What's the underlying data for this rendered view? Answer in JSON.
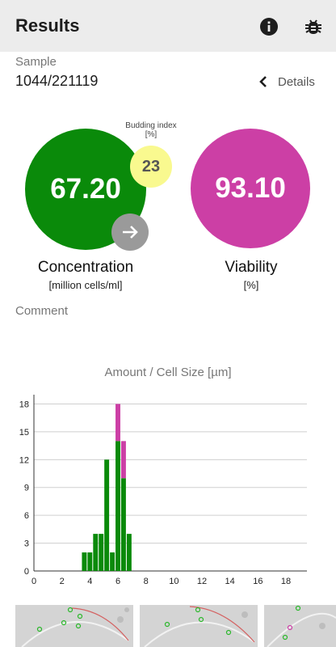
{
  "appbar": {
    "title": "Results",
    "info_icon": "info-icon",
    "bug_icon": "bug-icon"
  },
  "sample": {
    "label": "Sample",
    "value": "1044/221119",
    "details_label": "Details"
  },
  "concentration": {
    "value": "67.20",
    "label": "Concentration",
    "unit": "[million cells/ml]",
    "color": "#0a8a0a"
  },
  "budding": {
    "label_line1": "Budding index",
    "label_line2": "[%]",
    "value": "23",
    "color": "#f9f98f"
  },
  "viability": {
    "value": "93.10",
    "label": "Viability",
    "unit": "[%]",
    "color": "#cc3fa5"
  },
  "comment": {
    "label": "Comment"
  },
  "chart_data": {
    "type": "bar",
    "title": "Amount / Cell Size [µm]",
    "xlabel": "",
    "ylabel": "",
    "xlim": [
      0,
      19.5
    ],
    "ylim": [
      0,
      19
    ],
    "x_ticks": [
      0,
      2,
      4,
      6,
      8,
      10,
      12,
      14,
      16,
      18
    ],
    "y_ticks": [
      0,
      3,
      6,
      9,
      12,
      15,
      18
    ],
    "grid": true,
    "bar_width": 0.4,
    "x": [
      3.4,
      3.8,
      4.2,
      4.6,
      5.0,
      5.4,
      5.8,
      6.2,
      6.6,
      7.0
    ],
    "series": [
      {
        "color": "#0a8a0a",
        "values": [
          2,
          2,
          4,
          4,
          12,
          2,
          14,
          10,
          4,
          0
        ]
      },
      {
        "color": "#cc3fa5",
        "values": [
          0,
          0,
          0,
          0,
          0,
          0,
          4,
          4,
          0,
          0
        ]
      }
    ]
  },
  "thumbnails": [
    {
      "name": "image-1"
    },
    {
      "name": "image-2"
    },
    {
      "name": "image-3"
    }
  ]
}
